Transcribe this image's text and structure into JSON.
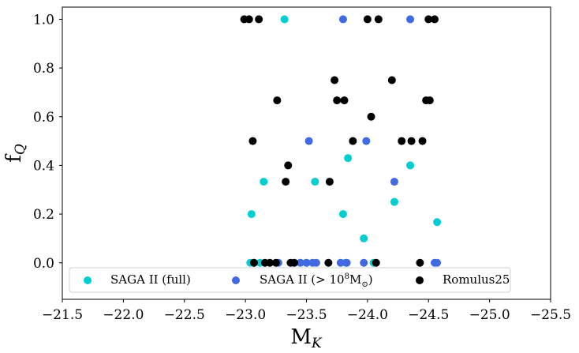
{
  "chart_data": {
    "type": "scatter",
    "xlabel": "M",
    "xlabel_sub": "K",
    "ylabel": "f",
    "ylabel_sub": "Q",
    "xlim": [
      -21.5,
      -25.5
    ],
    "ylim": [
      -0.15,
      1.05
    ],
    "xticks": [
      -21.5,
      -22.0,
      -22.5,
      -23.0,
      -23.5,
      -24.0,
      -24.5,
      -25.0,
      -25.5
    ],
    "xtick_labels": [
      "−21.5",
      "−22.0",
      "−22.5",
      "−23.0",
      "−23.5",
      "−24.0",
      "−24.5",
      "−25.0",
      "−25.5"
    ],
    "yticks": [
      0.0,
      0.2,
      0.4,
      0.6,
      0.8,
      1.0
    ],
    "ytick_labels": [
      "0.0",
      "0.2",
      "0.4",
      "0.6",
      "0.8",
      "1.0"
    ],
    "grid": false,
    "legend_position": "bottom",
    "series": [
      {
        "name": "SAGA II (full)",
        "color": "#00ced1",
        "points": [
          [
            -23.32,
            1.0
          ],
          [
            -23.84,
            0.43
          ],
          [
            -24.35,
            0.4
          ],
          [
            -23.15,
            0.333
          ],
          [
            -23.57,
            0.333
          ],
          [
            -24.22,
            0.25
          ],
          [
            -23.05,
            0.2
          ],
          [
            -23.8,
            0.2
          ],
          [
            -24.57,
            0.167
          ],
          [
            -23.97,
            0.1
          ],
          [
            -23.04,
            0.0
          ],
          [
            -23.12,
            0.0
          ],
          [
            -23.5,
            0.0
          ],
          [
            -23.82,
            0.0
          ],
          [
            -24.05,
            0.0
          ]
        ]
      },
      {
        "name": "SAGA II (> 10⁸M⊙)",
        "name_main": "SAGA II (> 10",
        "name_sup": "8",
        "name_tail": "M",
        "name_sub": "⊙",
        "name_close": ")",
        "color": "#4169e1",
        "points": [
          [
            -23.8,
            1.0
          ],
          [
            -24.35,
            1.0
          ],
          [
            -23.52,
            0.5
          ],
          [
            -23.99,
            0.5
          ],
          [
            -24.22,
            0.333
          ],
          [
            -23.07,
            0.0
          ],
          [
            -23.27,
            0.0
          ],
          [
            -23.45,
            0.0
          ],
          [
            -23.5,
            0.0
          ],
          [
            -23.55,
            0.0
          ],
          [
            -23.58,
            0.0
          ],
          [
            -23.78,
            0.0
          ],
          [
            -23.83,
            0.0
          ],
          [
            -23.97,
            0.0
          ],
          [
            -24.55,
            0.0
          ],
          [
            -24.57,
            0.0
          ]
        ]
      },
      {
        "name": "Romulus25",
        "color": "#000000",
        "points": [
          [
            -22.99,
            1.0
          ],
          [
            -23.03,
            1.0
          ],
          [
            -23.11,
            1.0
          ],
          [
            -24.0,
            1.0
          ],
          [
            -24.09,
            1.0
          ],
          [
            -24.5,
            1.0
          ],
          [
            -24.55,
            1.0
          ],
          [
            -23.73,
            0.75
          ],
          [
            -24.2,
            0.75
          ],
          [
            -23.26,
            0.667
          ],
          [
            -23.75,
            0.667
          ],
          [
            -23.81,
            0.667
          ],
          [
            -24.48,
            0.667
          ],
          [
            -24.51,
            0.667
          ],
          [
            -24.03,
            0.6
          ],
          [
            -23.06,
            0.5
          ],
          [
            -23.88,
            0.5
          ],
          [
            -24.28,
            0.5
          ],
          [
            -24.36,
            0.5
          ],
          [
            -24.45,
            0.5
          ],
          [
            -23.35,
            0.4
          ],
          [
            -23.33,
            0.333
          ],
          [
            -23.69,
            0.333
          ],
          [
            -23.07,
            0.0
          ],
          [
            -23.16,
            0.0
          ],
          [
            -23.2,
            0.0
          ],
          [
            -23.25,
            0.0
          ],
          [
            -23.37,
            0.0
          ],
          [
            -23.4,
            0.0
          ],
          [
            -23.68,
            0.0
          ],
          [
            -24.07,
            0.0
          ],
          [
            -24.43,
            0.0
          ]
        ]
      }
    ]
  }
}
